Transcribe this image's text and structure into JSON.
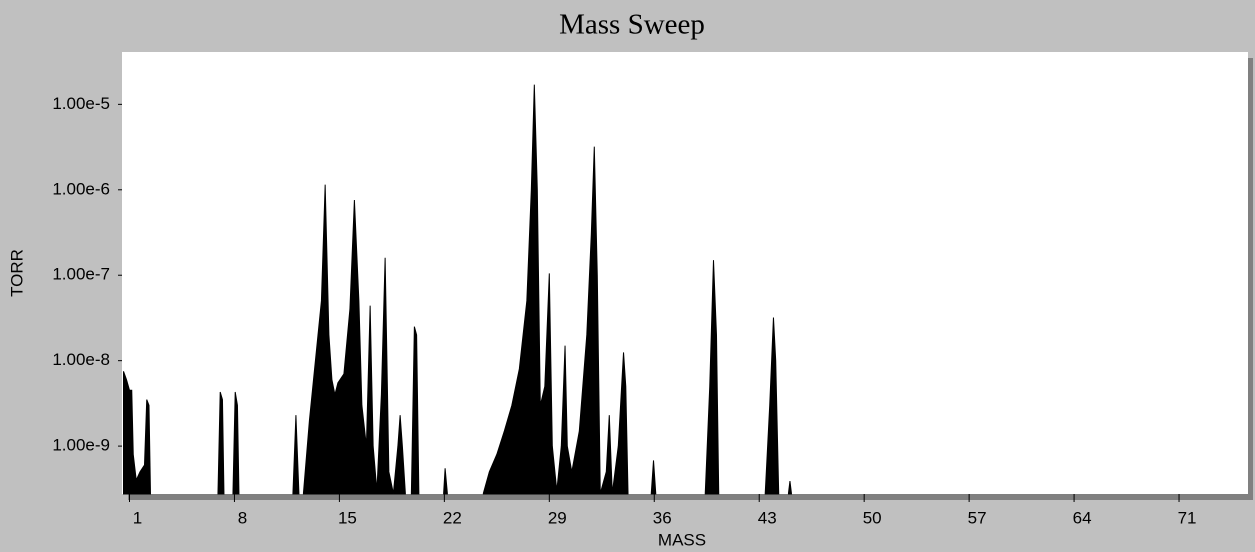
{
  "chart_data": {
    "type": "area",
    "title": "Mass Sweep",
    "x_label": "MASS",
    "y_label": "TORR",
    "yscale": "log",
    "color": "#000000",
    "xlim": [
      0.5,
      75.6
    ],
    "ylim": [
      2.75e-10,
      4.1e-05
    ],
    "xticks": [
      1,
      8,
      15,
      22,
      29,
      36,
      43,
      50,
      57,
      64,
      71
    ],
    "yticks": [
      {
        "value": 1e-09,
        "label": "1.00e-9"
      },
      {
        "value": 1e-08,
        "label": "1.00e-8"
      },
      {
        "value": 1e-07,
        "label": "1.00e-7"
      },
      {
        "value": 1e-06,
        "label": "1.00e-6"
      },
      {
        "value": 1e-05,
        "label": "1.00e-5"
      }
    ],
    "x": [
      0.6,
      0.8,
      1.0,
      1.15,
      1.25,
      1.45,
      1.7,
      2.0,
      2.15,
      2.3,
      2.4,
      null,
      6.9,
      7.05,
      7.2,
      7.3,
      null,
      7.9,
      8.05,
      8.2,
      8.3,
      null,
      11.9,
      12.1,
      12.3,
      null,
      12.6,
      13.0,
      13.4,
      13.8,
      14.05,
      14.3,
      14.5,
      14.7,
      14.9,
      15.3,
      15.7,
      16.0,
      16.3,
      16.5,
      16.8,
      17.05,
      17.25,
      17.5,
      17.8,
      18.05,
      18.3,
      18.6,
      18.9,
      19.05,
      19.2,
      19.4,
      null,
      19.8,
      20.0,
      20.15,
      20.3,
      null,
      21.95,
      22.05,
      22.2,
      null,
      24.6,
      25.0,
      25.5,
      26.0,
      26.5,
      27.0,
      27.5,
      27.8,
      28.0,
      28.2,
      28.4,
      28.7,
      29.0,
      29.2,
      29.5,
      29.8,
      30.05,
      30.2,
      30.5,
      31.0,
      31.5,
      31.8,
      32.0,
      32.2,
      32.4,
      32.8,
      33.0,
      33.2,
      33.6,
      33.95,
      34.1,
      34.25,
      null,
      35.8,
      35.95,
      36.1,
      null,
      39.4,
      39.7,
      39.95,
      40.15,
      40.3,
      null,
      43.4,
      43.7,
      43.95,
      44.1,
      44.3,
      null,
      44.95,
      45.05,
      45.15
    ],
    "values": [
      7.5e-09,
      6e-09,
      4.5e-09,
      4.5e-09,
      8e-10,
      4e-10,
      5e-10,
      6e-10,
      3.5e-09,
      3e-09,
      2.8e-10,
      null,
      2.8e-10,
      4.3e-09,
      3.5e-09,
      2.8e-10,
      null,
      2.8e-10,
      4.3e-09,
      3e-09,
      2.8e-10,
      null,
      2.8e-10,
      2.3e-09,
      2.8e-10,
      null,
      2.8e-10,
      2e-09,
      1e-08,
      5e-08,
      1.15e-06,
      2e-08,
      6e-09,
      4e-09,
      5.5e-09,
      7e-09,
      4e-08,
      7.6e-07,
      5e-08,
      3e-09,
      1e-09,
      4.4e-08,
      1e-09,
      3e-10,
      4e-09,
      1.6e-07,
      5e-10,
      2.8e-10,
      1e-09,
      2.3e-09,
      1e-09,
      2.8e-10,
      null,
      2.8e-10,
      2.5e-08,
      2e-08,
      2.8e-10,
      null,
      2.8e-10,
      5.5e-10,
      2.8e-10,
      null,
      2.8e-10,
      5e-10,
      8e-10,
      1.5e-09,
      3e-09,
      8e-09,
      5e-08,
      1e-06,
      1.7e-05,
      1e-06,
      3e-09,
      5e-09,
      1.05e-07,
      1e-09,
      3e-10,
      1e-09,
      1.5e-08,
      1e-09,
      5e-10,
      1.5e-09,
      2e-08,
      3e-07,
      3.2e-06,
      1e-07,
      2.8e-10,
      5e-10,
      2.3e-09,
      2.8e-10,
      1e-09,
      1.25e-08,
      5e-09,
      2.8e-10,
      null,
      2.8e-10,
      6.8e-10,
      2.8e-10,
      null,
      2.8e-10,
      5e-09,
      1.5e-07,
      2e-08,
      2.8e-10,
      null,
      2.8e-10,
      3e-09,
      3.2e-08,
      1e-08,
      2.8e-10,
      null,
      2.8e-10,
      3.9e-10,
      2.8e-10
    ]
  }
}
